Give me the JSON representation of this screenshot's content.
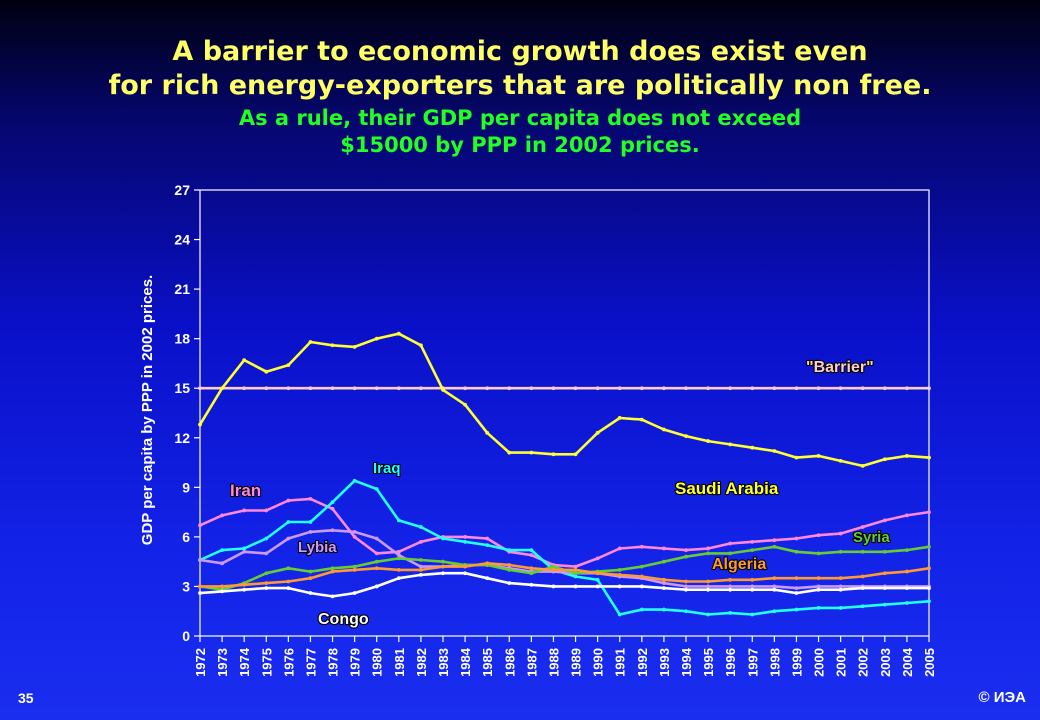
{
  "slide": {
    "title_line1": "A barrier to economic growth does exist even",
    "title_line2": "for rich energy-exporters that are politically non free.",
    "subtitle_line1": "As a rule, their GDP per capita does not exceed",
    "subtitle_line2": "$15000 by PPP in 2002 prices.",
    "slide_number": "35",
    "copyright": "© ИЭА"
  },
  "colors": {
    "background_top": "#000010",
    "background_bottom": "#1a2ef0",
    "title": "#ffff66",
    "subtitle": "#22ff22"
  },
  "chart_data": {
    "type": "line",
    "title": "",
    "xlabel": "",
    "ylabel": "GDP per capita by PPP in 2002 prices.",
    "ylim": [
      0,
      27
    ],
    "yticks": [
      "0",
      "3",
      "6",
      "9",
      "12",
      "15",
      "18",
      "21",
      "24",
      "27"
    ],
    "grid": false,
    "legend": "labels placed next to lines",
    "x": [
      "1972",
      "1973",
      "1974",
      "1975",
      "1976",
      "1977",
      "1978",
      "1979",
      "1980",
      "1981",
      "1982",
      "1983",
      "1984",
      "1985",
      "1986",
      "1987",
      "1988",
      "1989",
      "1990",
      "1991",
      "1992",
      "1993",
      "1994",
      "1995",
      "1996",
      "1997",
      "1998",
      "1999",
      "2000",
      "2001",
      "2002",
      "2003",
      "2004",
      "2005"
    ],
    "series": [
      {
        "name": "\"Barrier\"",
        "color": "#ffcccc",
        "values": [
          15,
          15,
          15,
          15,
          15,
          15,
          15,
          15,
          15,
          15,
          15,
          15,
          15,
          15,
          15,
          15,
          15,
          15,
          15,
          15,
          15,
          15,
          15,
          15,
          15,
          15,
          15,
          15,
          15,
          15,
          15,
          15,
          15,
          15
        ]
      },
      {
        "name": "Saudi Arabia",
        "color": "#ffff33",
        "values": [
          12.8,
          15.0,
          16.7,
          16.0,
          16.4,
          17.8,
          17.6,
          17.5,
          18.0,
          18.3,
          17.6,
          14.9,
          14.0,
          12.3,
          11.1,
          11.1,
          11.0,
          11.0,
          12.3,
          13.2,
          13.1,
          12.5,
          12.1,
          11.8,
          11.6,
          11.4,
          11.2,
          10.8,
          10.9,
          10.6,
          10.3,
          10.7,
          10.9,
          10.8
        ]
      },
      {
        "name": "Iran",
        "color": "#ff88dd",
        "values": [
          6.7,
          7.3,
          7.6,
          7.6,
          8.2,
          8.3,
          7.7,
          6.0,
          5.0,
          5.1,
          5.7,
          6.0,
          6.0,
          5.9,
          5.1,
          4.9,
          4.3,
          4.2,
          4.7,
          5.3,
          5.4,
          5.3,
          5.2,
          5.3,
          5.6,
          5.7,
          5.8,
          5.9,
          6.1,
          6.2,
          6.6,
          7.0,
          7.3,
          7.5
        ]
      },
      {
        "name": "Iraq",
        "color": "#22ffff",
        "values": [
          4.6,
          5.2,
          5.3,
          5.9,
          6.9,
          6.9,
          8.1,
          9.4,
          8.9,
          7.0,
          6.6,
          5.9,
          5.7,
          5.5,
          5.2,
          5.2,
          4.0,
          3.6,
          3.4,
          1.3,
          1.6,
          1.6,
          1.5,
          1.3,
          1.4,
          1.3,
          1.5,
          1.6,
          1.7,
          1.7,
          1.8,
          1.9,
          2.0,
          2.1
        ]
      },
      {
        "name": "Lybia",
        "color": "#cc99ff",
        "values": [
          4.6,
          4.4,
          5.1,
          5.0,
          5.9,
          6.3,
          6.4,
          6.3,
          5.9,
          4.9,
          4.2,
          4.2,
          4.3,
          4.3,
          4.1,
          3.9,
          3.9,
          3.8,
          3.8,
          3.6,
          3.5,
          3.2,
          3.0,
          3.0,
          3.0,
          3.0,
          3.0,
          2.9,
          3.0,
          3.0,
          3.0,
          3.0,
          3.0,
          3.0
        ]
      },
      {
        "name": "Syria",
        "color": "#66cc33",
        "values": [
          3.0,
          2.8,
          3.2,
          3.8,
          4.1,
          3.9,
          4.1,
          4.2,
          4.5,
          4.7,
          4.6,
          4.5,
          4.3,
          4.3,
          4.0,
          3.8,
          4.2,
          3.8,
          3.9,
          4.0,
          4.2,
          4.5,
          4.8,
          5.0,
          5.0,
          5.2,
          5.4,
          5.1,
          5.0,
          5.1,
          5.1,
          5.1,
          5.2,
          5.4
        ]
      },
      {
        "name": "Algeria",
        "color": "#ff9933",
        "values": [
          3.0,
          3.0,
          3.1,
          3.2,
          3.3,
          3.5,
          3.9,
          4.0,
          4.1,
          4.0,
          4.0,
          4.2,
          4.2,
          4.4,
          4.3,
          4.1,
          4.0,
          4.0,
          3.8,
          3.7,
          3.6,
          3.4,
          3.3,
          3.3,
          3.4,
          3.4,
          3.5,
          3.5,
          3.5,
          3.5,
          3.6,
          3.8,
          3.9,
          4.1
        ]
      },
      {
        "name": "Congo",
        "color": "#ffffff",
        "values": [
          2.6,
          2.7,
          2.8,
          2.9,
          2.9,
          2.6,
          2.4,
          2.6,
          3.0,
          3.5,
          3.7,
          3.8,
          3.8,
          3.5,
          3.2,
          3.1,
          3.0,
          3.0,
          3.0,
          3.0,
          3.0,
          2.9,
          2.8,
          2.8,
          2.8,
          2.8,
          2.8,
          2.6,
          2.8,
          2.8,
          2.9,
          2.9,
          2.9,
          2.9
        ]
      }
    ]
  }
}
